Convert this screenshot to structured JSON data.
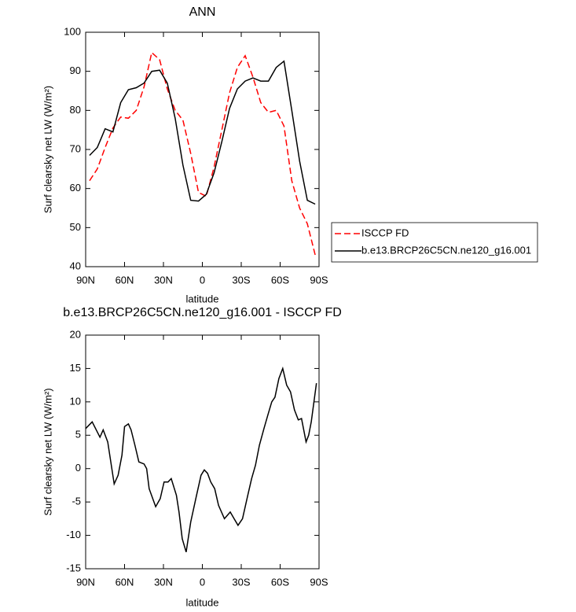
{
  "chart_data": [
    {
      "type": "line",
      "title": "ANN",
      "xlabel": "latitude",
      "ylabel": "Surf clearsky net LW (W/m²)",
      "xlim": [
        90,
        -90
      ],
      "ylim": [
        40,
        100
      ],
      "xticks": [
        {
          "value": 90,
          "label": "90N"
        },
        {
          "value": 60,
          "label": "60N"
        },
        {
          "value": 30,
          "label": "30N"
        },
        0,
        {
          "value": -30,
          "label": "30S"
        },
        {
          "value": -60,
          "label": "60S"
        },
        {
          "value": -90,
          "label": "90S"
        }
      ],
      "yticks": [
        40,
        50,
        60,
        70,
        80,
        90,
        100
      ],
      "legend": "outside-right",
      "x": [
        87,
        81,
        75,
        69,
        63,
        57,
        51,
        45,
        39,
        33,
        27,
        21,
        15,
        9,
        3,
        -3,
        -9,
        -15,
        -21,
        -27,
        -33,
        -39,
        -45,
        -51,
        -57,
        -63,
        -69,
        -75,
        -81,
        -87
      ],
      "series": [
        {
          "name": "ISCCP FD",
          "color": "#ff0000",
          "dash": "dashed",
          "values": [
            62,
            65,
            70.5,
            75.5,
            78.3,
            78,
            80,
            86,
            94.8,
            93,
            85.5,
            80,
            77.5,
            69,
            59,
            58,
            65.5,
            75,
            84.5,
            91,
            94,
            88.5,
            82,
            79.5,
            80,
            76,
            62,
            55,
            51,
            43
          ]
        },
        {
          "name": "b.e13.BRCP26C5CN.ne120_g16.001",
          "color": "#000000",
          "dash": "solid",
          "values": [
            68.5,
            70.5,
            75.3,
            74.5,
            82,
            85.3,
            85.8,
            87,
            90,
            90.3,
            87,
            78,
            66,
            57,
            56.8,
            58.5,
            64,
            72,
            80.5,
            85.5,
            87.5,
            88.3,
            87.5,
            87.5,
            91,
            92.6,
            80,
            67,
            57,
            56
          ]
        }
      ]
    },
    {
      "type": "line",
      "title": "b.e13.BRCP26C5CN.ne120_g16.001 - ISCCP FD",
      "xlabel": "latitude",
      "ylabel": "Surf clearsky net LW (W/m²)",
      "xlim": [
        90,
        -90
      ],
      "ylim": [
        -15,
        20
      ],
      "xticks": [
        {
          "value": 90,
          "label": "90N"
        },
        {
          "value": 60,
          "label": "60N"
        },
        {
          "value": 30,
          "label": "30N"
        },
        0,
        {
          "value": -30,
          "label": "30S"
        },
        {
          "value": -60,
          "label": "60S"
        },
        {
          "value": -90,
          "label": "90S"
        }
      ],
      "yticks": [
        -15,
        -10,
        -5,
        0,
        5,
        10,
        15,
        20
      ],
      "x": [
        90,
        85,
        79,
        76.5,
        73,
        68,
        65,
        62,
        60,
        57,
        55,
        52,
        49,
        45,
        43,
        41,
        36,
        32.5,
        29.5,
        26.5,
        24,
        20,
        18,
        15.5,
        12.5,
        9,
        4.5,
        1,
        -1.5,
        -4,
        -6.5,
        -9.5,
        -12.5,
        -17,
        -21.5,
        -24.5,
        -27.5,
        -31,
        -35,
        -38,
        -41,
        -44,
        -47.5,
        -50.5,
        -53.5,
        -56,
        -59,
        -62,
        -65,
        -68,
        -71,
        -74,
        -76.5,
        -80,
        -82,
        -84,
        -88
      ],
      "series": [
        {
          "color": "#000000",
          "dash": "solid",
          "values": [
            6,
            7,
            4.7,
            5.8,
            4,
            -2.3,
            -1,
            2,
            6.3,
            6.7,
            5.8,
            3.5,
            1,
            0.7,
            0,
            -3,
            -5.7,
            -4.5,
            -2,
            -2,
            -1.5,
            -4,
            -6.5,
            -10.5,
            -12.5,
            -8,
            -4,
            -1,
            -0.2,
            -0.7,
            -2,
            -3,
            -5.5,
            -7.5,
            -6.5,
            -7.5,
            -8.5,
            -7.5,
            -4,
            -1.5,
            0.5,
            3.5,
            6,
            8,
            10,
            10.7,
            13.5,
            15,
            12.5,
            11.5,
            8.8,
            7.3,
            7.5,
            4,
            5,
            7,
            12.8
          ]
        }
      ]
    }
  ]
}
